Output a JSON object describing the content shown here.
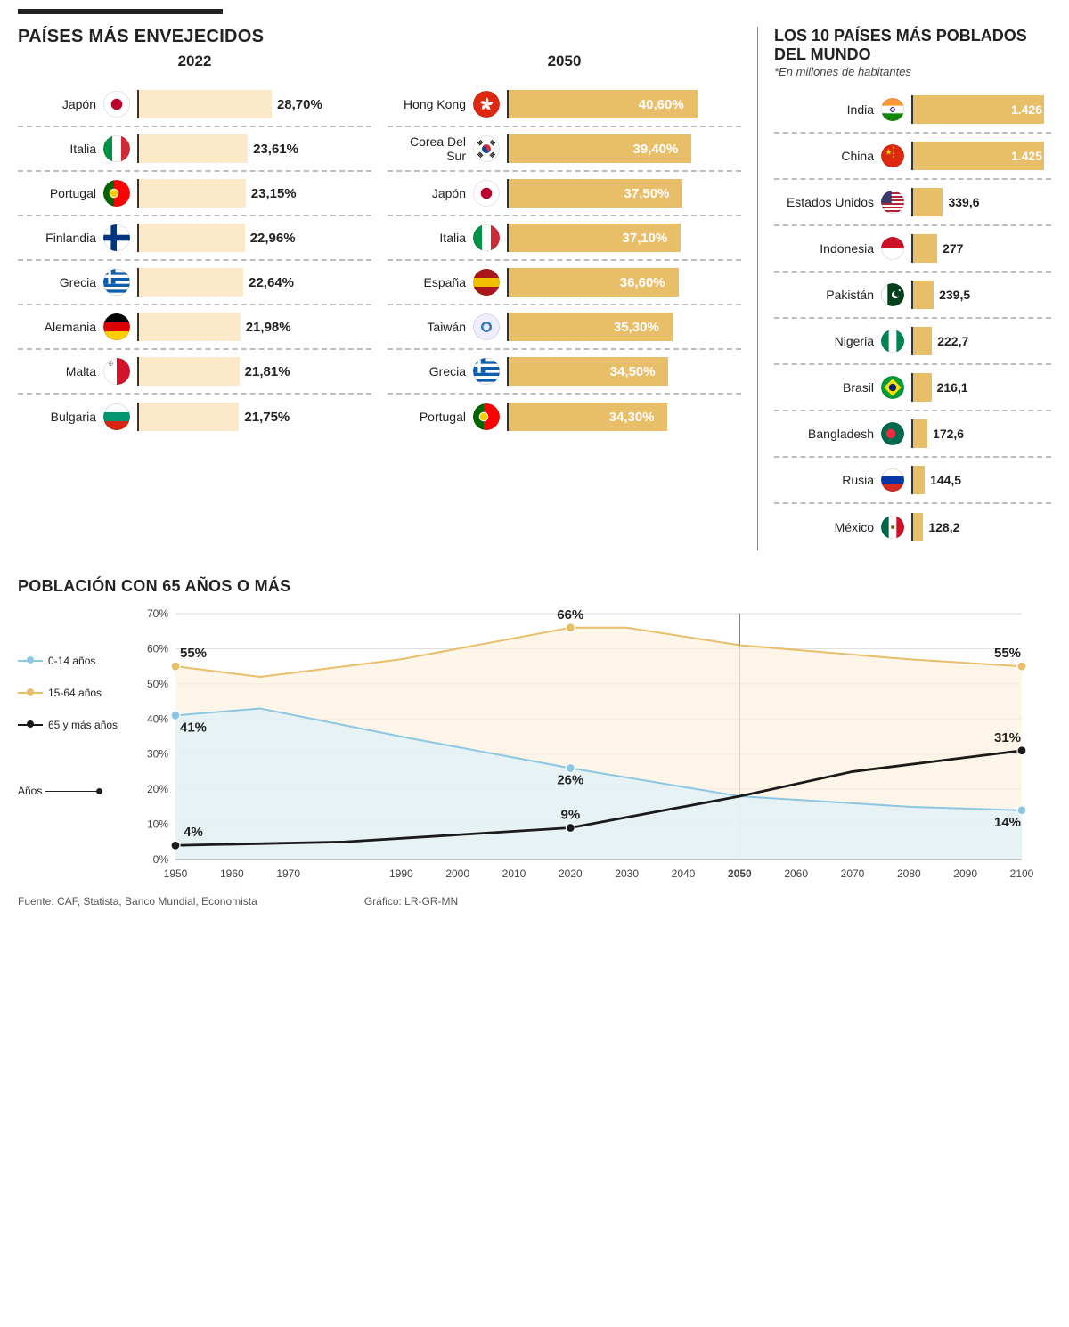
{
  "colors": {
    "bar_light": "#fce9c9",
    "bar_dark": "#e9be69",
    "text": "#222222",
    "dash": "#bdbdbd",
    "line_blue": "#8cc6e2",
    "line_gold": "#e9be69",
    "line_black": "#1a1a1a",
    "grid": "#cccccc",
    "vline_2050": "#666666",
    "area_blue": "#e3f1f7",
    "area_gold": "#fcf2de"
  },
  "aging": {
    "title": "PAÍSES MÁS ENVEJECIDOS",
    "bar_max_pct": 50,
    "year_2022_label": "2022",
    "year_2050_label": "2050",
    "y2022": [
      {
        "country": "Japón",
        "flag": "jp",
        "value": "28,70%",
        "pct": 28.7
      },
      {
        "country": "Italia",
        "flag": "it",
        "value": "23,61%",
        "pct": 23.61
      },
      {
        "country": "Portugal",
        "flag": "pt",
        "value": "23,15%",
        "pct": 23.15
      },
      {
        "country": "Finlandia",
        "flag": "fi",
        "value": "22,96%",
        "pct": 22.96
      },
      {
        "country": "Grecia",
        "flag": "gr",
        "value": "22,64%",
        "pct": 22.64
      },
      {
        "country": "Alemania",
        "flag": "de",
        "value": "21,98%",
        "pct": 21.98
      },
      {
        "country": "Malta",
        "flag": "mt",
        "value": "21,81%",
        "pct": 21.81
      },
      {
        "country": "Bulgaria",
        "flag": "bg",
        "value": "21,75%",
        "pct": 21.75
      }
    ],
    "y2050": [
      {
        "country": "Hong Kong",
        "flag": "hk",
        "value": "40,60%",
        "pct": 40.6
      },
      {
        "country": "Corea Del Sur",
        "flag": "kr",
        "value": "39,40%",
        "pct": 39.4
      },
      {
        "country": "Japón",
        "flag": "jp",
        "value": "37,50%",
        "pct": 37.5
      },
      {
        "country": "Italia",
        "flag": "it",
        "value": "37,10%",
        "pct": 37.1
      },
      {
        "country": "España",
        "flag": "es",
        "value": "36,60%",
        "pct": 36.6
      },
      {
        "country": "Taiwán",
        "flag": "tw",
        "value": "35,30%",
        "pct": 35.3
      },
      {
        "country": "Grecia",
        "flag": "gr",
        "value": "34,50%",
        "pct": 34.5
      },
      {
        "country": "Portugal",
        "flag": "pt",
        "value": "34,30%",
        "pct": 34.3
      }
    ]
  },
  "population": {
    "title": "LOS 10 PAÍSES MÁS POBLADOS DEL MUNDO",
    "note": "*En millones de habitantes",
    "bar_max": 1500,
    "rows": [
      {
        "country": "India",
        "flag": "in",
        "value": "1.426",
        "num": 1426,
        "inside": true
      },
      {
        "country": "China",
        "flag": "cn",
        "value": "1.425",
        "num": 1425,
        "inside": true
      },
      {
        "country": "Estados Unidos",
        "flag": "us",
        "value": "339,6",
        "num": 339.6,
        "inside": false
      },
      {
        "country": "Indonesia",
        "flag": "id",
        "value": "277",
        "num": 277,
        "inside": false
      },
      {
        "country": "Pakistán",
        "flag": "pk",
        "value": "239,5",
        "num": 239.5,
        "inside": false
      },
      {
        "country": "Nigeria",
        "flag": "ng",
        "value": "222,7",
        "num": 222.7,
        "inside": false
      },
      {
        "country": "Brasil",
        "flag": "br",
        "value": "216,1",
        "num": 216.1,
        "inside": false
      },
      {
        "country": "Bangladesh",
        "flag": "bd",
        "value": "172,6",
        "num": 172.6,
        "inside": false
      },
      {
        "country": "Rusia",
        "flag": "ru",
        "value": "144,5",
        "num": 144.5,
        "inside": false
      },
      {
        "country": "México",
        "flag": "mx",
        "value": "128,2",
        "num": 128.2,
        "inside": false
      }
    ]
  },
  "line_chart": {
    "title": "POBLACIÓN CON 65 AÑOS O MÁS",
    "x_axis_label": "Años",
    "y_ticks": [
      "0%",
      "10%",
      "20%",
      "30%",
      "40%",
      "50%",
      "60%",
      "70%"
    ],
    "y_max": 70,
    "x_ticks": [
      1950,
      1960,
      1970,
      1990,
      2000,
      2010,
      2020,
      2030,
      2040,
      2050,
      2060,
      2070,
      2080,
      2090,
      2100
    ],
    "vline_year": 2050,
    "legend": [
      {
        "label": "0-14 años",
        "color_key": "line_blue"
      },
      {
        "label": "15-64 años",
        "color_key": "line_gold"
      },
      {
        "label": "65 y más años",
        "color_key": "line_black"
      }
    ],
    "series": {
      "young": {
        "color_key": "line_blue",
        "points": [
          [
            1950,
            41
          ],
          [
            1965,
            43
          ],
          [
            1990,
            35
          ],
          [
            2020,
            26
          ],
          [
            2050,
            18
          ],
          [
            2080,
            15
          ],
          [
            2100,
            14
          ]
        ],
        "area_key": "area_blue"
      },
      "working": {
        "color_key": "line_gold",
        "points": [
          [
            1950,
            55
          ],
          [
            1965,
            52
          ],
          [
            1990,
            57
          ],
          [
            2020,
            66
          ],
          [
            2030,
            66
          ],
          [
            2050,
            61
          ],
          [
            2080,
            57
          ],
          [
            2100,
            55
          ]
        ],
        "area_key": "area_gold"
      },
      "old": {
        "color_key": "line_black",
        "points": [
          [
            1950,
            4
          ],
          [
            1980,
            5
          ],
          [
            2000,
            7
          ],
          [
            2020,
            9
          ],
          [
            2050,
            18
          ],
          [
            2070,
            25
          ],
          [
            2100,
            31
          ]
        ]
      }
    },
    "labels": [
      {
        "x": 1950,
        "y": 55,
        "text": "55%",
        "anchor": "above"
      },
      {
        "x": 1950,
        "y": 41,
        "text": "41%",
        "anchor": "below"
      },
      {
        "x": 1950,
        "y": 4,
        "text": "4%",
        "anchor": "above"
      },
      {
        "x": 2020,
        "y": 66,
        "text": "66%",
        "anchor": "above"
      },
      {
        "x": 2020,
        "y": 26,
        "text": "26%",
        "anchor": "below"
      },
      {
        "x": 2020,
        "y": 9,
        "text": "9%",
        "anchor": "above"
      },
      {
        "x": 2100,
        "y": 55,
        "text": "55%",
        "anchor": "above"
      },
      {
        "x": 2100,
        "y": 31,
        "text": "31%",
        "anchor": "above"
      },
      {
        "x": 2100,
        "y": 14,
        "text": "14%",
        "anchor": "below"
      }
    ]
  },
  "footer": {
    "source": "Fuente: CAF, Statista, Banco Mundial,  Economista",
    "credit": "Gráfico: LR-GR-MN"
  }
}
